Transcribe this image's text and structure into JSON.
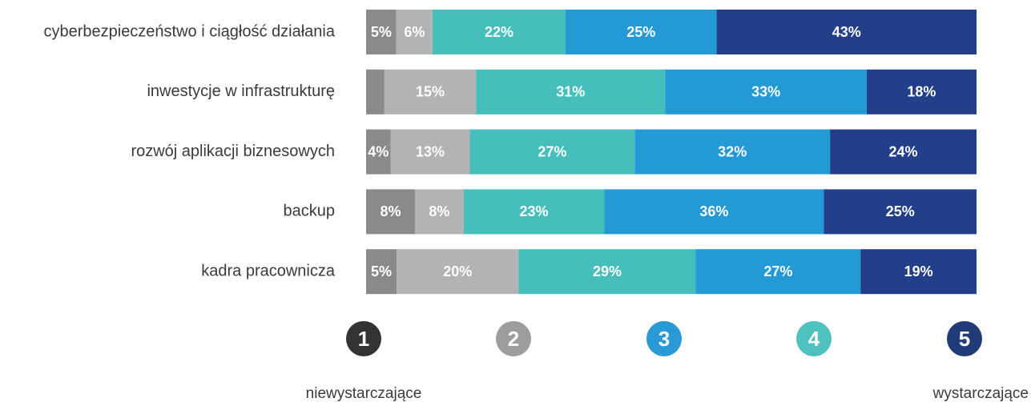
{
  "chart_data": {
    "type": "stacked_bar_horizontal",
    "categories": [
      "cyberbezpieczeństwo i ciągłość działania",
      "inwestycje w infrastrukturę",
      "rozwój aplikacji biznesowych",
      "backup",
      "kadra pracownicza"
    ],
    "series": [
      {
        "color": "#898a8c",
        "values": [
          5,
          3,
          4,
          8,
          5
        ],
        "value_labels": [
          "5%",
          null,
          "4%",
          "8%",
          "5%"
        ]
      },
      {
        "color": "#b2b3b5",
        "values": [
          6,
          15,
          13,
          8,
          20
        ],
        "value_labels": [
          "6%",
          "15%",
          "13%",
          "8%",
          "20%"
        ]
      },
      {
        "color": "#46bfbc",
        "values": [
          22,
          31,
          27,
          23,
          29
        ],
        "value_labels": [
          "22%",
          "31%",
          "27%",
          "23%",
          "29%"
        ]
      },
      {
        "color": "#2399d6",
        "values": [
          25,
          33,
          32,
          36,
          27
        ],
        "value_labels": [
          "25%",
          "33%",
          "32%",
          "36%",
          "27%"
        ]
      },
      {
        "color": "#233f8a",
        "values": [
          43,
          18,
          24,
          25,
          19
        ],
        "value_labels": [
          "43%",
          "18%",
          "24%",
          "25%",
          "19%"
        ]
      }
    ],
    "scale": {
      "points": [
        1,
        2,
        3,
        4,
        5
      ],
      "colors": [
        "#333333",
        "#9d9d9f",
        "#2a9ad6",
        "#4fc1be",
        "#1f3c79"
      ],
      "low_label": "niewystarczające",
      "high_label": "wystarczające"
    }
  }
}
